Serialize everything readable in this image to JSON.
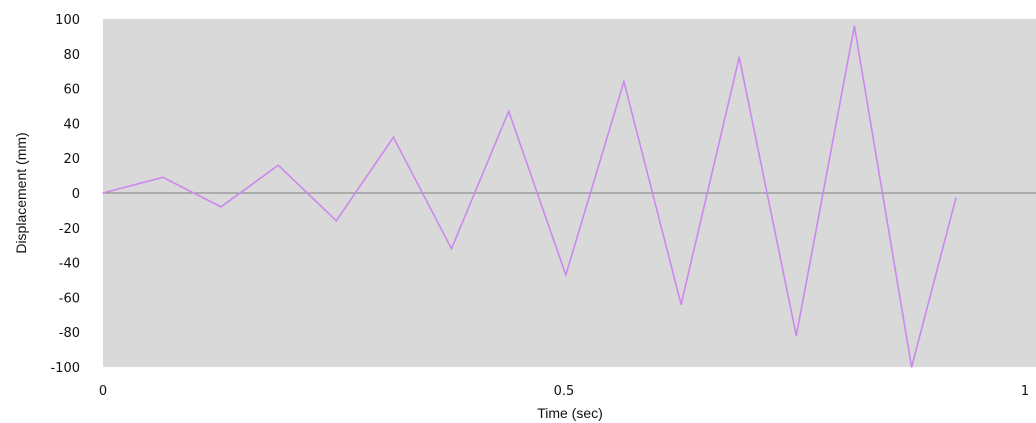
{
  "chart_data": {
    "type": "line",
    "title": "",
    "xlabel": "Time (sec)",
    "ylabel": "Displacement (mm)",
    "xlim": [
      0,
      1
    ],
    "ylim": [
      -100,
      100
    ],
    "x_ticks": [
      "0",
      "0.5",
      "1"
    ],
    "y_ticks": [
      "100",
      "80",
      "60",
      "40",
      "20",
      "0",
      "-20",
      "-40",
      "-60",
      "-80",
      "-100"
    ],
    "grid": false,
    "legend": "none",
    "plot_background": "#d9d9d9",
    "line_color": "#cc88ee",
    "zero_line_color": "#7f7f7f",
    "series": [
      {
        "x": [
          0,
          0.065,
          0.128,
          0.19,
          0.253,
          0.315,
          0.378,
          0.44,
          0.502,
          0.565,
          0.627,
          0.69,
          0.752,
          0.815,
          0.877,
          0.925
        ],
        "values": [
          0,
          9,
          -8,
          16,
          -16,
          32,
          -32,
          47,
          -47,
          64,
          -64,
          78,
          -82,
          96,
          -100,
          -3
        ]
      }
    ]
  }
}
